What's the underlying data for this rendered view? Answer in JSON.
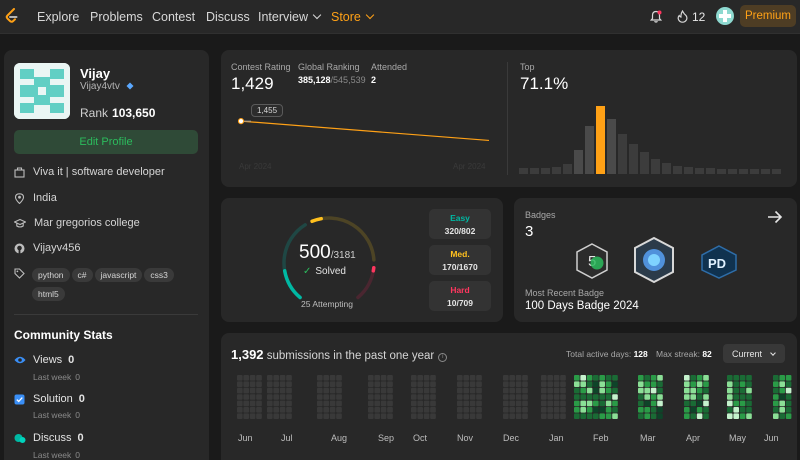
{
  "nav": {
    "links": [
      "Explore",
      "Problems",
      "Contest",
      "Discuss",
      "Interview",
      "Store"
    ],
    "streak": "12",
    "premium": "Premium"
  },
  "profile": {
    "name": "Vijay",
    "handle": "Vijay4vtv",
    "rank_label": "Rank",
    "rank": "103,650",
    "edit_label": "Edit Profile",
    "about": "Viva it | software developer",
    "location": "India",
    "school": "Mar gregorios college",
    "github": "Vijayv456",
    "skills": [
      "python",
      "c#",
      "javascript",
      "css3",
      "html5"
    ]
  },
  "community": {
    "title": "Community Stats",
    "stats": [
      {
        "label": "Views",
        "value": "0",
        "sub": "Last week",
        "delta": "0"
      },
      {
        "label": "Solution",
        "value": "0",
        "sub": "Last week",
        "delta": "0"
      },
      {
        "label": "Discuss",
        "value": "0",
        "sub": "Last week",
        "delta": "0"
      }
    ]
  },
  "contest": {
    "rating_label": "Contest Rating",
    "rating": "1,429",
    "global_label": "Global Ranking",
    "global_rank": "385,128",
    "global_total": "/545,539",
    "attended_label": "Attended",
    "attended": "2",
    "tooltip": "1,455",
    "date_start": "Apr 2024",
    "date_end": "Apr 2024",
    "top_label": "Top",
    "top_value": "71.1%"
  },
  "chart_data": {
    "type": "line",
    "title": "Contest Rating",
    "series": [
      {
        "values": [
          1455,
          1429
        ]
      }
    ],
    "x": [
      "Apr 2024",
      "Apr 2024"
    ]
  },
  "solved": {
    "count": "500",
    "total": "/3181",
    "label": "Solved",
    "attempting": "25 Attempting",
    "fraction": 0.157,
    "easy_label": "Easy",
    "easy": "320/802",
    "med_label": "Med.",
    "med": "170/1670",
    "hard_label": "Hard",
    "hard": "10/709"
  },
  "badges": {
    "title": "Badges",
    "count": "3",
    "recent_label": "Most Recent Badge",
    "recent": "100 Days Badge 2024",
    "badge3_text": "PD"
  },
  "submissions": {
    "count": "1,392",
    "text": " submissions in the past one year",
    "active_label": "Total active days:",
    "active": "128",
    "streak_label": "Max streak:",
    "streak": "82",
    "current": "Current",
    "months": [
      "Jun",
      "Jul",
      "Aug",
      "Sep",
      "Oct",
      "Nov",
      "Dec",
      "Jan",
      "Feb",
      "Mar",
      "Apr",
      "May",
      "Jun"
    ]
  },
  "colors": {
    "easy": "#00b8a3",
    "medium": "#ffc01e",
    "hard": "#ff375f",
    "accent": "#ffa116",
    "green": "#2cbb5d"
  }
}
